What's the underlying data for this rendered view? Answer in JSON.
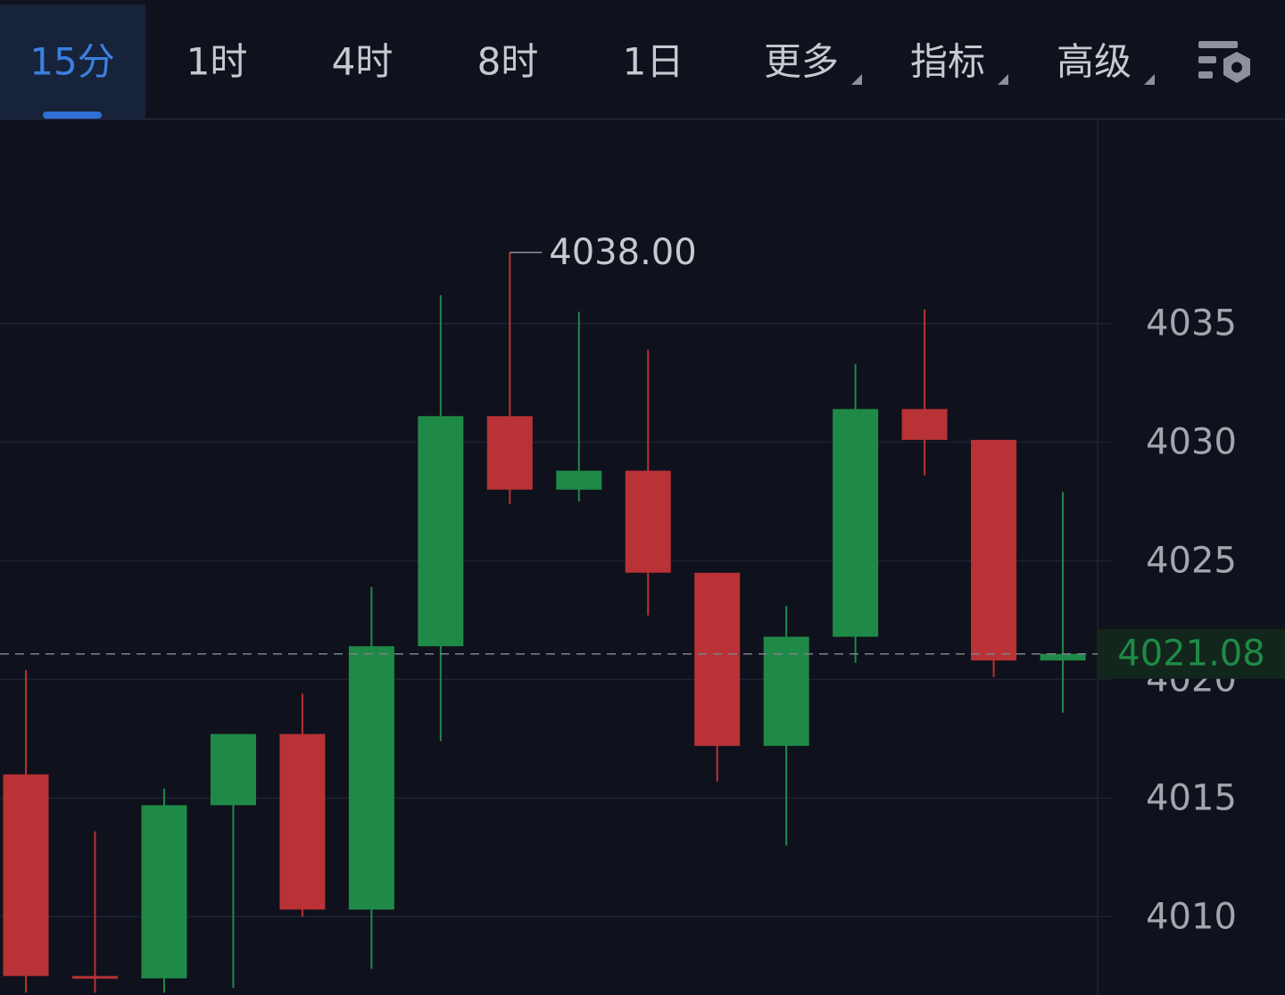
{
  "tabs": [
    {
      "label": "15分"
    },
    {
      "label": "1时"
    },
    {
      "label": "4时"
    },
    {
      "label": "8时"
    },
    {
      "label": "1日"
    },
    {
      "label": "更多",
      "dropdown": true
    },
    {
      "label": "指标",
      "dropdown": true
    },
    {
      "label": "高级",
      "dropdown": true
    }
  ],
  "active_tab": "15分",
  "chart_data": {
    "type": "candlestick",
    "series": [
      {
        "name": "Price",
        "open": [
          4016.0,
          4007.5,
          4007.4,
          4014.7,
          4017.7,
          4010.3,
          4021.4,
          4031.1,
          4028.0,
          4028.8,
          4024.5,
          4017.2,
          4021.8,
          4031.4,
          4030.1,
          4020.8
        ],
        "high": [
          4020.4,
          4013.6,
          4015.4,
          4017.7,
          4019.4,
          4023.9,
          4036.2,
          4038.0,
          4035.5,
          4033.9,
          4024.5,
          4023.1,
          4033.3,
          4035.6,
          4030.1,
          4027.9
        ],
        "low": [
          4006.8,
          4006.8,
          4006.8,
          4007.0,
          4010.0,
          4007.8,
          4017.4,
          4027.4,
          4027.5,
          4022.7,
          4015.7,
          4013.0,
          4020.7,
          4028.6,
          4020.1,
          4018.6
        ],
        "close": [
          4007.5,
          4007.4,
          4014.7,
          4017.7,
          4010.3,
          4021.4,
          4031.1,
          4028.0,
          4028.8,
          4024.5,
          4017.2,
          4021.8,
          4031.4,
          4030.1,
          4020.8,
          4021.08
        ]
      }
    ],
    "up_color": "#1f8a47",
    "down_color": "#b83236",
    "ylim": [
      4006.7,
      4043.6
    ],
    "yticks": [
      4010,
      4015,
      4020,
      4025,
      4030,
      4035
    ],
    "grid": true,
    "annotations": [
      {
        "text": "4038.00",
        "value": 4038.0
      }
    ],
    "last_price": {
      "value": 4021.08,
      "label": "4021.08"
    }
  }
}
